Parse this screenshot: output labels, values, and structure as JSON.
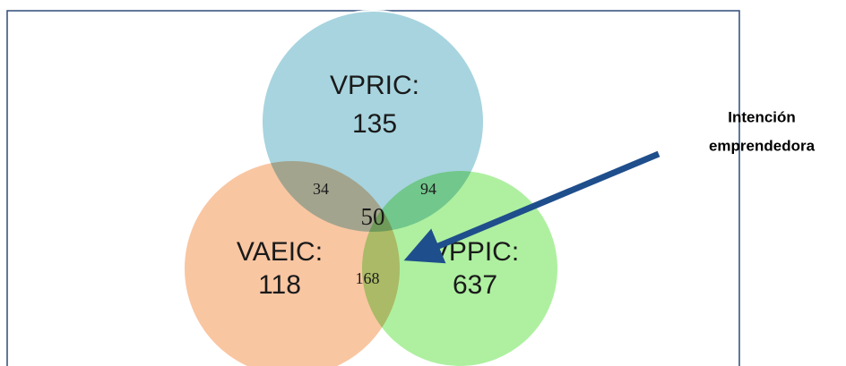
{
  "sets": [
    {
      "label": "VPRIC:",
      "value": 135
    },
    {
      "label": "VAEIC:",
      "value": 118
    },
    {
      "label": "VPPIC:",
      "value": 637
    }
  ],
  "intersections": [
    34,
    94,
    168,
    50
  ],
  "annotation": [
    "Intención",
    "emprendedora"
  ]
}
